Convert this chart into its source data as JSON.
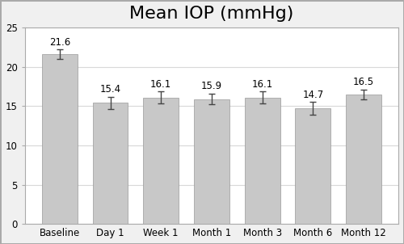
{
  "categories": [
    "Baseline",
    "Day 1",
    "Week 1",
    "Month 1",
    "Month 3",
    "Month 6",
    "Month 12"
  ],
  "values": [
    21.6,
    15.4,
    16.1,
    15.9,
    16.1,
    14.7,
    16.5
  ],
  "errors": [
    0.6,
    0.8,
    0.75,
    0.7,
    0.75,
    0.85,
    0.6
  ],
  "bar_color": "#c8c8c8",
  "bar_edgecolor": "#999999",
  "title": "Mean IOP (mmHg)",
  "title_fontsize": 16,
  "ylim": [
    0,
    25
  ],
  "yticks": [
    0,
    5,
    10,
    15,
    20,
    25
  ],
  "label_fontsize": 8.5,
  "tick_fontsize": 8.5,
  "background_color": "#ffffff",
  "figure_facecolor": "#f0f0f0",
  "grid_color": "#d8d8d8",
  "error_color": "#444444",
  "border_color": "#aaaaaa"
}
